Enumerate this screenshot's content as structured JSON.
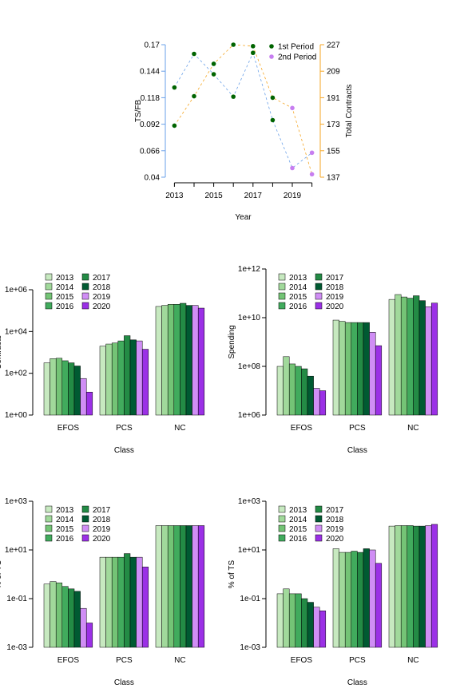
{
  "palette": {
    "years": [
      "#f7fcf5",
      "#c7e9c0",
      "#a1d99b",
      "#74c476",
      "#41ab5d",
      "#238b45",
      "#005a32",
      "#d08ef5",
      "#9b30e6"
    ],
    "first_period": "#006400",
    "second_period": "#c77ef0",
    "left_axis": "#6aa0e8",
    "right_axis": "#f5a623"
  },
  "chart_data": [
    {
      "type": "line",
      "xlabel": "Year",
      "ylabel_left": "TS/FB",
      "ylabel_right": "Total Contracts",
      "x": [
        2013,
        2014,
        2015,
        2016,
        2017,
        2018,
        2019,
        2020
      ],
      "x_ticks": [
        "2013",
        "2015",
        "2017",
        "2019"
      ],
      "ylim_left": [
        0.04,
        0.17
      ],
      "yticks_left": [
        "0.04",
        "0.066",
        "0.092",
        "0.118",
        "0.144",
        "0.17"
      ],
      "ylim_right": [
        137,
        227
      ],
      "yticks_right": [
        "137",
        "155",
        "173",
        "191",
        "209",
        "227"
      ],
      "series": [
        {
          "name": "1st Period",
          "axis": "left",
          "values": [
            0.128,
            0.161,
            0.141,
            0.119,
            0.162,
            0.096,
            null,
            null
          ]
        },
        {
          "name": "1st Period",
          "axis": "right",
          "values": [
            172,
            192,
            214,
            227,
            226,
            191,
            null,
            null
          ]
        },
        {
          "name": "2nd Period",
          "axis": "left",
          "values": [
            null,
            null,
            null,
            null,
            null,
            null,
            0.049,
            0.064
          ]
        },
        {
          "name": "2nd Period",
          "axis": "right",
          "values": [
            null,
            null,
            null,
            null,
            null,
            null,
            184,
            139
          ]
        }
      ],
      "legend": [
        "1st Period",
        "2nd Period"
      ],
      "legend_position": "top-right"
    },
    {
      "type": "bar",
      "log_scale": true,
      "ylabel": "Contracts",
      "xlabel": "Class",
      "categories": [
        "EFOS",
        "PCS",
        "NC"
      ],
      "yticks": [
        "1e+00",
        "1e+02",
        "1e+04",
        "1e+06"
      ],
      "ylim_log10": [
        0,
        6
      ],
      "legend": [
        "2013",
        "2014",
        "2015",
        "2016",
        "2017",
        "2018",
        "2019",
        "2020"
      ],
      "values_log10": [
        [
          2.5,
          3.3,
          5.2
        ],
        [
          2.7,
          3.4,
          5.25
        ],
        [
          2.72,
          3.45,
          5.3
        ],
        [
          2.6,
          3.55,
          5.3
        ],
        [
          2.5,
          3.8,
          5.35
        ],
        [
          2.35,
          3.6,
          5.25
        ],
        [
          1.75,
          3.55,
          5.25
        ],
        [
          1.1,
          3.15,
          5.12
        ]
      ]
    },
    {
      "type": "bar",
      "log_scale": true,
      "ylabel": "Spending",
      "xlabel": "Class",
      "categories": [
        "EFOS",
        "PCS",
        "NC"
      ],
      "yticks": [
        "1e+06",
        "1e+08",
        "1e+10",
        "1e+12"
      ],
      "ylim_log10": [
        6,
        12
      ],
      "legend": [
        "2013",
        "2014",
        "2015",
        "2016",
        "2017",
        "2018",
        "2019",
        "2020"
      ],
      "values_log10": [
        [
          8.0,
          9.9,
          10.75
        ],
        [
          8.4,
          9.85,
          10.95
        ],
        [
          8.1,
          9.8,
          10.85
        ],
        [
          8.0,
          9.8,
          10.8
        ],
        [
          7.9,
          9.8,
          10.9
        ],
        [
          7.6,
          9.8,
          10.7
        ],
        [
          7.1,
          9.4,
          10.45
        ],
        [
          7.0,
          8.85,
          10.6
        ]
      ]
    },
    {
      "type": "bar",
      "log_scale": true,
      "ylabel": "% of TC",
      "xlabel": "Class",
      "categories": [
        "EFOS",
        "PCS",
        "NC"
      ],
      "yticks": [
        "1e-03",
        "1e-01",
        "1e+01",
        "1e+03"
      ],
      "ylim_log10": [
        -3,
        3
      ],
      "legend": [
        "2013",
        "2014",
        "2015",
        "2016",
        "2017",
        "2018",
        "2019",
        "2020"
      ],
      "values_log10": [
        [
          -0.4,
          0.7,
          2.0
        ],
        [
          -0.3,
          0.7,
          2.0
        ],
        [
          -0.35,
          0.7,
          2.0
        ],
        [
          -0.5,
          0.7,
          2.0
        ],
        [
          -0.6,
          0.85,
          2.0
        ],
        [
          -0.7,
          0.7,
          2.0
        ],
        [
          -1.4,
          0.7,
          2.0
        ],
        [
          -2.0,
          0.3,
          2.0
        ]
      ]
    },
    {
      "type": "bar",
      "log_scale": true,
      "ylabel": "% of TS",
      "xlabel": "Class",
      "categories": [
        "EFOS",
        "PCS",
        "NC"
      ],
      "yticks": [
        "1e-03",
        "1e-01",
        "1e+01",
        "1e+03"
      ],
      "ylim_log10": [
        -3,
        3
      ],
      "legend": [
        "2013",
        "2014",
        "2015",
        "2016",
        "2017",
        "2018",
        "2019",
        "2020"
      ],
      "values_log10": [
        [
          -0.8,
          1.05,
          1.98
        ],
        [
          -0.6,
          0.9,
          2.0
        ],
        [
          -0.8,
          0.9,
          2.0
        ],
        [
          -0.8,
          0.95,
          2.0
        ],
        [
          -1.0,
          0.9,
          1.98
        ],
        [
          -1.15,
          1.05,
          1.98
        ],
        [
          -1.35,
          1.0,
          2.0
        ],
        [
          -1.5,
          0.45,
          2.05
        ]
      ]
    }
  ]
}
